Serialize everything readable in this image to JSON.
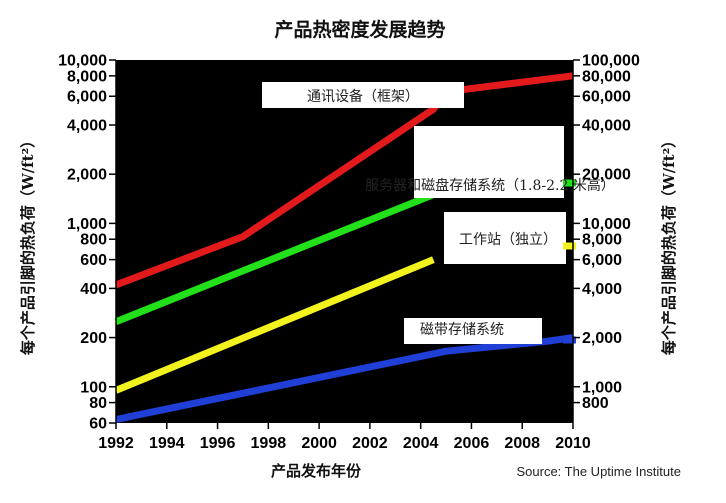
{
  "chart_data": {
    "type": "line",
    "title": "产品热密度发展趋势",
    "xlabel": "产品发布年份",
    "ylabel_left": "每个产品引脚的热负荷（W/ft²）",
    "ylabel_right": "每个产品引脚的热负荷（W/ft²）",
    "source": "Source: The Uptime Institute",
    "y_scale": "log",
    "xlim": [
      1992,
      2010
    ],
    "ylim_left": [
      60,
      10000
    ],
    "ylim_right": [
      600,
      100000
    ],
    "x_ticks": [
      "1992",
      "1994",
      "1996",
      "1998",
      "2000",
      "2002",
      "2004",
      "2006",
      "2008",
      "2010"
    ],
    "y_ticks_left": [
      {
        "value": 10000,
        "label": "10,000"
      },
      {
        "value": 8000,
        "label": "8,000"
      },
      {
        "value": 6000,
        "label": "6,000"
      },
      {
        "value": 4000,
        "label": "4,000"
      },
      {
        "value": 2000,
        "label": "2,000"
      },
      {
        "value": 1000,
        "label": "1,000"
      },
      {
        "value": 800,
        "label": "800"
      },
      {
        "value": 600,
        "label": "600"
      },
      {
        "value": 400,
        "label": "400"
      },
      {
        "value": 200,
        "label": "200"
      },
      {
        "value": 100,
        "label": "100"
      },
      {
        "value": 80,
        "label": "80"
      },
      {
        "value": 60,
        "label": "60"
      }
    ],
    "y_ticks_right": [
      {
        "value": 100000,
        "label": "100,000"
      },
      {
        "value": 80000,
        "label": "80,000"
      },
      {
        "value": 60000,
        "label": "60,000"
      },
      {
        "value": 40000,
        "label": "40,000"
      },
      {
        "value": 20000,
        "label": "20,000"
      },
      {
        "value": 10000,
        "label": "10,000"
      },
      {
        "value": 8000,
        "label": "8,000"
      },
      {
        "value": 6000,
        "label": "6,000"
      },
      {
        "value": 4000,
        "label": "4,000"
      },
      {
        "value": 2000,
        "label": "2,000"
      },
      {
        "value": 1000,
        "label": "1,000"
      },
      {
        "value": 800,
        "label": "800"
      }
    ],
    "series": [
      {
        "name": "通讯设备（框架）",
        "color": "#e31a1c",
        "x": [
          1992,
          1997,
          2004.5,
          2005,
          2010
        ],
        "y": [
          420,
          830,
          5000,
          6400,
          8000
        ]
      },
      {
        "name": "服务器和磁盘存储系统（1.8-2.2 米高）",
        "color": "#22e01a",
        "x": [
          1992,
          2004.5
        ],
        "y": [
          250,
          1500
        ]
      },
      {
        "name": "工作站（独立）",
        "color": "#f2f21e",
        "x": [
          1992,
          2004.5
        ],
        "y": [
          95,
          600
        ]
      },
      {
        "name": "磁带存储系统",
        "color": "#1f3fd6",
        "x": [
          1992,
          2005,
          2009,
          2010
        ],
        "y": [
          63,
          165,
          190,
          200
        ]
      }
    ],
    "grid": false,
    "legend": "inline labels"
  }
}
